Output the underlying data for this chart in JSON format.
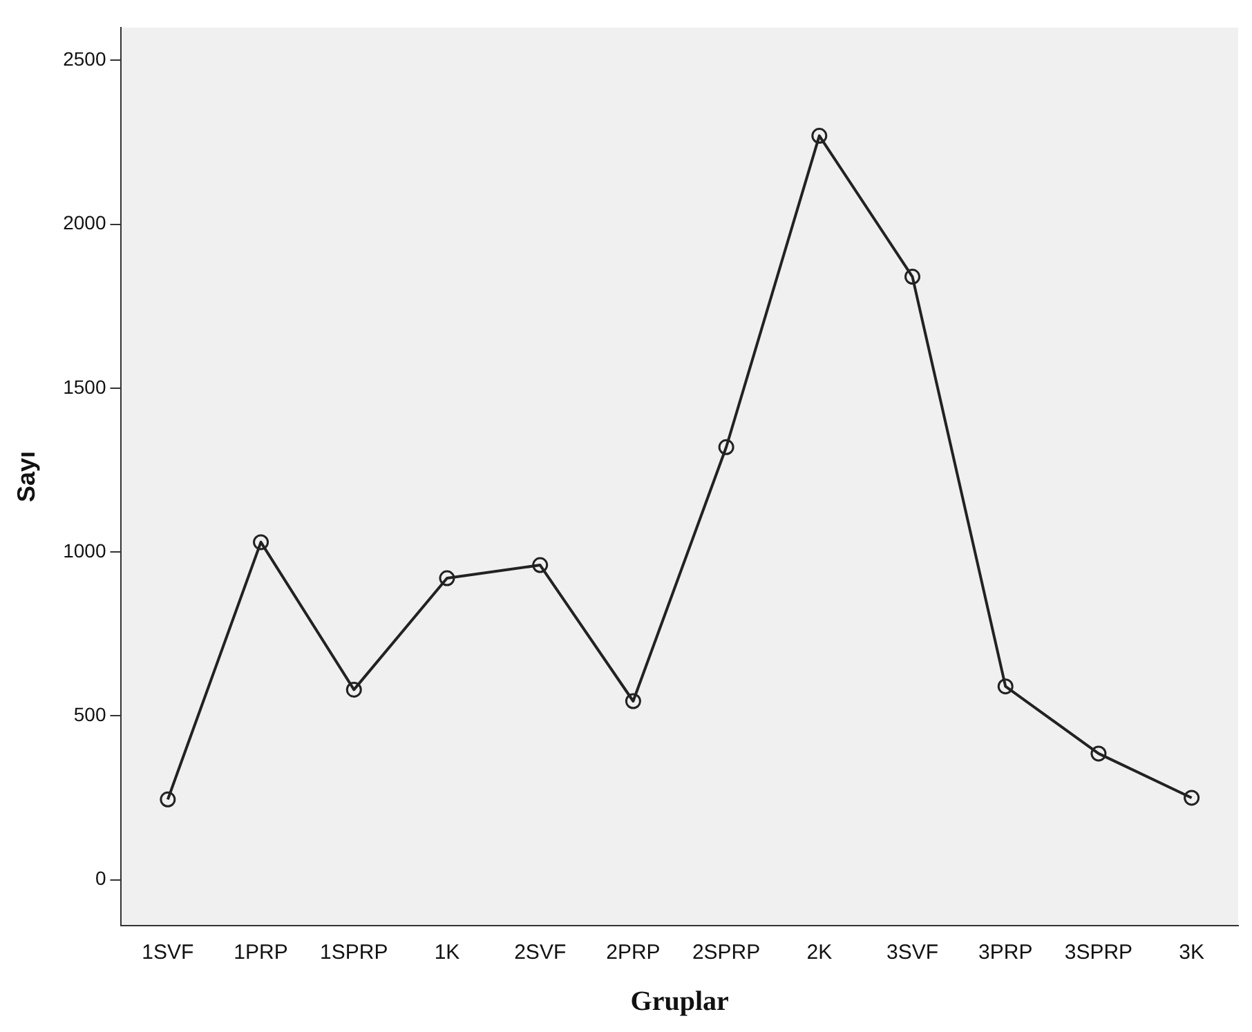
{
  "chart_data": {
    "type": "line",
    "xlabel": "Gruplar",
    "ylabel": "Sayı",
    "categories": [
      "1SVF",
      "1PRP",
      "1SPRP",
      "1K",
      "2SVF",
      "2PRP",
      "2SPRP",
      "2K",
      "3SVF",
      "3PRP",
      "3SPRP",
      "3K"
    ],
    "series": [
      {
        "color": "#222222",
        "values": [
          245,
          1030,
          580,
          920,
          960,
          545,
          1320,
          2270,
          1840,
          590,
          385,
          250
        ]
      }
    ],
    "ylim": [
      -140,
      2600
    ],
    "yticks": [
      0,
      500,
      1000,
      1500,
      2000,
      2500
    ],
    "grid": false,
    "legend": false,
    "marker": "circle",
    "line_style": "solid"
  }
}
